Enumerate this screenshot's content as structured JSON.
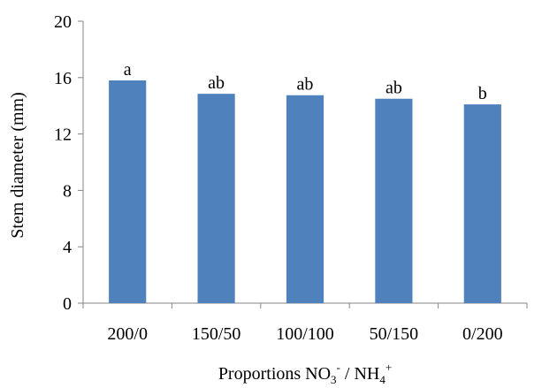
{
  "chart_data": {
    "type": "bar",
    "categories": [
      "200/0",
      "150/50",
      "100/100",
      "50/150",
      "0/200"
    ],
    "values": [
      15.8,
      14.85,
      14.75,
      14.5,
      14.1
    ],
    "significance_letters": [
      "a",
      "ab",
      "ab",
      "ab",
      "b"
    ],
    "title": "",
    "ylabel": "Stem diameter (mm)",
    "xlabel": {
      "prefix": "Proportions NO",
      "no3_sub": "3",
      "no3_sup": "-",
      "separator": " / NH",
      "nh4_sub": "4",
      "nh4_sup": "+"
    },
    "ylim": [
      0,
      20
    ],
    "yticks": [
      0,
      4,
      8,
      12,
      16,
      20
    ],
    "grid": false,
    "legend": "none",
    "bar_color": "#4F81BD"
  }
}
